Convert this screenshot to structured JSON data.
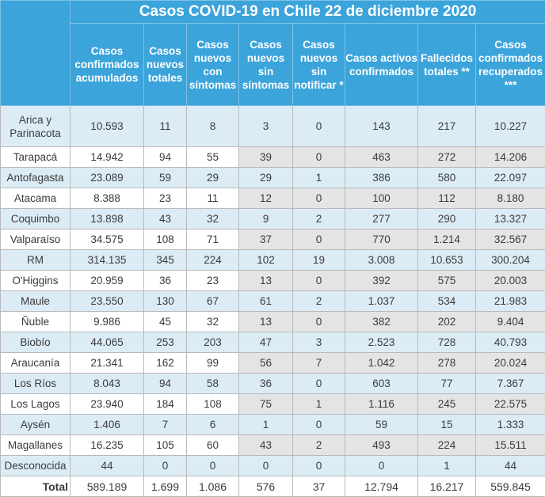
{
  "title": "Casos COVID-19 en Chile 22 de diciembre 2020",
  "headers": [
    "Casos confirmados acumulados",
    "Casos nuevos totales",
    "Casos nuevos con síntomas",
    "Casos nuevos sin síntomas",
    "Casos nuevos sin notificar *",
    "Casos activos confirmados",
    "Fallecidos totales **",
    "Casos confirmados recuperados ***"
  ],
  "rows": [
    {
      "region": "Arica y Parinacota",
      "values": [
        "10.593",
        "11",
        "8",
        "3",
        "0",
        "143",
        "217",
        "10.227"
      ]
    },
    {
      "region": "Tarapacá",
      "values": [
        "14.942",
        "94",
        "55",
        "39",
        "0",
        "463",
        "272",
        "14.206"
      ]
    },
    {
      "region": "Antofagasta",
      "values": [
        "23.089",
        "59",
        "29",
        "29",
        "1",
        "386",
        "580",
        "22.097"
      ]
    },
    {
      "region": "Atacama",
      "values": [
        "8.388",
        "23",
        "11",
        "12",
        "0",
        "100",
        "112",
        "8.180"
      ]
    },
    {
      "region": "Coquimbo",
      "values": [
        "13.898",
        "43",
        "32",
        "9",
        "2",
        "277",
        "290",
        "13.327"
      ]
    },
    {
      "region": "Valparaíso",
      "values": [
        "34.575",
        "108",
        "71",
        "37",
        "0",
        "770",
        "1.214",
        "32.567"
      ]
    },
    {
      "region": "RM",
      "values": [
        "314.135",
        "345",
        "224",
        "102",
        "19",
        "3.008",
        "10.653",
        "300.204"
      ]
    },
    {
      "region": "O'Higgins",
      "values": [
        "20.959",
        "36",
        "23",
        "13",
        "0",
        "392",
        "575",
        "20.003"
      ]
    },
    {
      "region": "Maule",
      "values": [
        "23.550",
        "130",
        "67",
        "61",
        "2",
        "1.037",
        "534",
        "21.983"
      ]
    },
    {
      "region": "Ñuble",
      "values": [
        "9.986",
        "45",
        "32",
        "13",
        "0",
        "382",
        "202",
        "9.404"
      ]
    },
    {
      "region": "Biobío",
      "values": [
        "44.065",
        "253",
        "203",
        "47",
        "3",
        "2.523",
        "728",
        "40.793"
      ]
    },
    {
      "region": "Araucanía",
      "values": [
        "21.341",
        "162",
        "99",
        "56",
        "7",
        "1.042",
        "278",
        "20.024"
      ]
    },
    {
      "region": "Los Ríos",
      "values": [
        "8.043",
        "94",
        "58",
        "36",
        "0",
        "603",
        "77",
        "7.367"
      ]
    },
    {
      "region": "Los Lagos",
      "values": [
        "23.940",
        "184",
        "108",
        "75",
        "1",
        "1.116",
        "245",
        "22.575"
      ]
    },
    {
      "region": "Aysén",
      "values": [
        "1.406",
        "7",
        "6",
        "1",
        "0",
        "59",
        "15",
        "1.333"
      ]
    },
    {
      "region": "Magallanes",
      "values": [
        "16.235",
        "105",
        "60",
        "43",
        "2",
        "493",
        "224",
        "15.511"
      ]
    },
    {
      "region": "Desconocida",
      "values": [
        "44",
        "0",
        "0",
        "0",
        "0",
        "0",
        "1",
        "44"
      ]
    }
  ],
  "total": {
    "label": "Total",
    "values": [
      "589.189",
      "1.699",
      "1.086",
      "576",
      "37",
      "12.794",
      "16.217",
      "559.845"
    ]
  }
}
